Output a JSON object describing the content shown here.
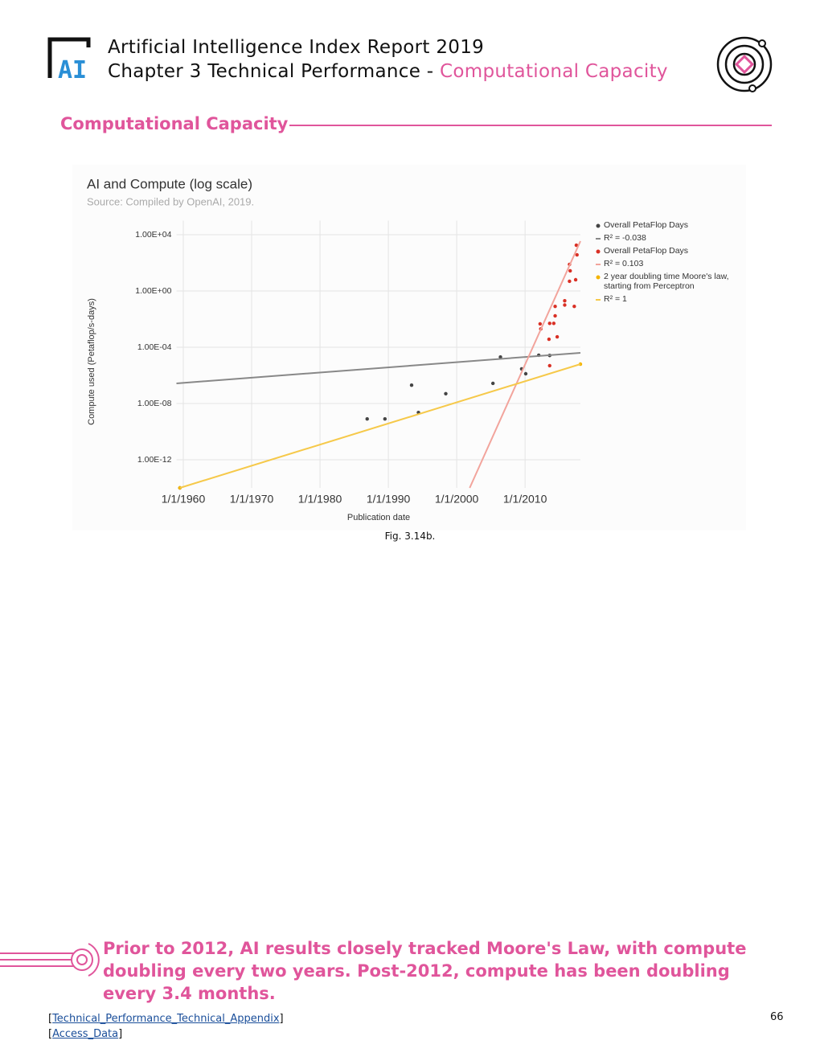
{
  "header": {
    "logo_text": "AI",
    "title": "Artificial Intelligence Index Report 2019",
    "chapter": "Chapter 3 Technical Performance - ",
    "chapter_topic": "Computational Capacity"
  },
  "section_title": "Computational Capacity",
  "chart_data": {
    "type": "scatter",
    "title": "AI and Compute (log scale)",
    "subtitle": "Source: Compiled by OpenAI, 2019.",
    "x_label": "Publication date",
    "y_label": "Compute used (Petaflop/s-days)",
    "y_scale": "log",
    "grid": true,
    "legend": "right",
    "xlim": [
      1959,
      2018.1
    ],
    "ylim": [
      1e-14,
      100000.0
    ],
    "xticks": [
      {
        "value": 1960,
        "label": "1/1/1960"
      },
      {
        "value": 1970,
        "label": "1/1/1970"
      },
      {
        "value": 1980,
        "label": "1/1/1980"
      },
      {
        "value": 1990,
        "label": "1/1/1990"
      },
      {
        "value": 2000,
        "label": "1/1/2000"
      },
      {
        "value": 2010,
        "label": "1/1/2010"
      }
    ],
    "yticks": [
      {
        "value": 10000,
        "label": "1.00E+04"
      },
      {
        "value": 1,
        "label": "1.00E+00"
      },
      {
        "value": 0.0001,
        "label": "1.00E-04"
      },
      {
        "value": 1e-08,
        "label": "1.00E-08"
      },
      {
        "value": 1e-12,
        "label": "1.00E-12"
      }
    ],
    "series": [
      {
        "name": "Overall PetaFlop Days",
        "color": "#444444",
        "marker": "dot",
        "x": [
          1959.5,
          1986.9,
          1989.5,
          1993.4,
          1994.4,
          1998.4,
          2005.3,
          2006.4,
          2009.5,
          2010.1,
          2012,
          2013.6
        ],
        "values": [
          1e-14,
          8e-10,
          8e-10,
          2e-07,
          2.3e-09,
          5e-08,
          2.7e-07,
          2e-05,
          2.9e-06,
          1.3e-06,
          2.7e-05,
          2.6e-05
        ]
      },
      {
        "name": "R² = -0.038",
        "color": "#888888",
        "marker": "line",
        "x": [
          1959,
          2018.1
        ],
        "values": [
          2.7e-07,
          4e-05
        ]
      },
      {
        "name": "Overall PetaFlop Days",
        "color": "#d93025",
        "marker": "dot",
        "x": [
          2012.2,
          2012.3,
          2013.5,
          2013.6,
          2013.6,
          2014.2,
          2014.4,
          2014.4,
          2014.7,
          2015.8,
          2015.8,
          2016.5,
          2016.6,
          2016.5,
          2017.2,
          2017.4,
          2017.5,
          2017.6
        ],
        "values": [
          0.0046,
          0.002,
          0.00037,
          0.005,
          4.9e-06,
          0.005,
          0.017,
          0.08,
          0.00055,
          0.2,
          0.1,
          78,
          27,
          4.9,
          0.08,
          6.3,
          1800,
          370
        ]
      },
      {
        "name": "R² = 0.103",
        "color": "#f2a49c",
        "marker": "line",
        "x": [
          2001.9,
          2018.1
        ],
        "values": [
          1e-14,
          3500
        ]
      },
      {
        "name": "2 year doubling time Moore's law, starting from Perceptron",
        "color": "#f4b400",
        "marker": "dot",
        "x": [
          1959.5,
          2018.1
        ],
        "values": [
          1e-14,
          6.3e-06
        ]
      },
      {
        "name": "R² = 1",
        "color": "#f6c94a",
        "marker": "line",
        "x": [
          1959.5,
          2018.1
        ],
        "values": [
          1e-14,
          6.3e-06
        ]
      }
    ]
  },
  "caption": "Fig. 3.14b.",
  "callout": "Prior to 2012, AI results closely tracked Moore's Law, with compute doubling every two years. Post-2012, compute has been doubling every 3.4 months.",
  "footer": {
    "links": [
      {
        "open": "[",
        "text": "Technical_Performance_Technical_Appendix",
        "close": "]"
      },
      {
        "open": "[",
        "text": "Access_Data",
        "close": "]"
      }
    ],
    "page_number": "66"
  }
}
